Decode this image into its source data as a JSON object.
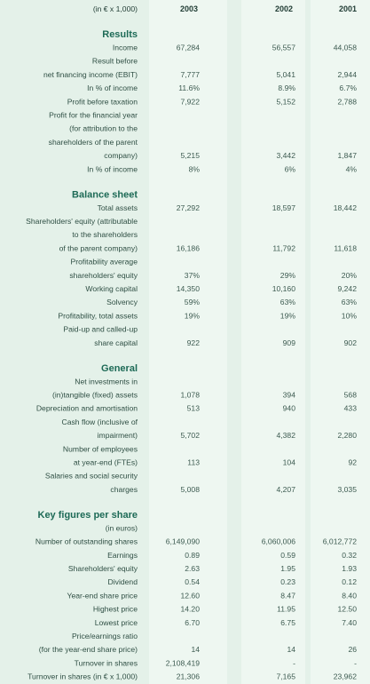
{
  "header": {
    "unit": "(in € x 1,000)",
    "years": [
      "2003",
      "2002",
      "2001"
    ]
  },
  "sections": [
    {
      "title": "Results",
      "rows": [
        {
          "label": "Income",
          "values": [
            "67,284",
            "56,557",
            "44,058"
          ]
        },
        {
          "label": "Result before"
        },
        {
          "label": "net financing income (EBIT)",
          "values": [
            "7,777",
            "5,041",
            "2,944"
          ]
        },
        {
          "label": "In % of income",
          "values": [
            "11.6%",
            "8.9%",
            "6.7%"
          ]
        },
        {
          "label": "Profit before taxation",
          "values": [
            "7,922",
            "5,152",
            "2,788"
          ]
        },
        {
          "label": "Profit for the financial year"
        },
        {
          "label": "(for attribution to the"
        },
        {
          "label": "shareholders of the parent"
        },
        {
          "label": "company)",
          "values": [
            "5,215",
            "3,442",
            "1,847"
          ]
        },
        {
          "label": "In % of income",
          "values": [
            "8%",
            "6%",
            "4%"
          ]
        }
      ]
    },
    {
      "title": "Balance sheet",
      "rows": [
        {
          "label": "Total assets",
          "values": [
            "27,292",
            "18,597",
            "18,442"
          ]
        },
        {
          "label": "Shareholders' equity (attributable"
        },
        {
          "label": "to the shareholders"
        },
        {
          "label": "of the parent company)",
          "values": [
            "16,186",
            "11,792",
            "11,618"
          ]
        },
        {
          "label": "Profitability average"
        },
        {
          "label": "shareholders' equity",
          "values": [
            "37%",
            "29%",
            "20%"
          ]
        },
        {
          "label": "Working capital",
          "values": [
            "14,350",
            "10,160",
            "9,242"
          ]
        },
        {
          "label": "Solvency",
          "values": [
            "59%",
            "63%",
            "63%"
          ]
        },
        {
          "label": "Profitability, total assets",
          "values": [
            "19%",
            "19%",
            "10%"
          ]
        },
        {
          "label": "Paid-up and called-up"
        },
        {
          "label": "share capital",
          "values": [
            "922",
            "909",
            "902"
          ]
        }
      ]
    },
    {
      "title": "General",
      "rows": [
        {
          "label": "Net investments in"
        },
        {
          "label": "(in)tangible (fixed) assets",
          "values": [
            "1,078",
            "394",
            "568"
          ]
        },
        {
          "label": "Depreciation and amortisation",
          "values": [
            "513",
            "940",
            "433"
          ]
        },
        {
          "label": "Cash flow (inclusive of"
        },
        {
          "label": "impairment)",
          "values": [
            "5,702",
            "4,382",
            "2,280"
          ]
        },
        {
          "label": "Number of employees"
        },
        {
          "label": "at year-end (FTEs)",
          "values": [
            "113",
            "104",
            "92"
          ]
        },
        {
          "label": "Salaries and social security"
        },
        {
          "label": "charges",
          "values": [
            "5,008",
            "4,207",
            "3,035"
          ]
        }
      ]
    },
    {
      "title": "Key figures per share",
      "rows": [
        {
          "label": "(in euros)"
        },
        {
          "label": "Number of outstanding shares",
          "values": [
            "6,149,090",
            "6,060,006",
            "6,012,772"
          ]
        },
        {
          "label": "Earnings",
          "values": [
            "0.89",
            "0.59",
            "0.32"
          ]
        },
        {
          "label": "Shareholders' equity",
          "values": [
            "2.63",
            "1.95",
            "1.93"
          ]
        },
        {
          "label": "Dividend",
          "values": [
            "0.54",
            "0.23",
            "0.12"
          ]
        },
        {
          "label": "Year-end share price",
          "values": [
            "12.60",
            "8.47",
            "8.40"
          ]
        },
        {
          "label": "Highest price",
          "values": [
            "14.20",
            "11.95",
            "12.50"
          ]
        },
        {
          "label": "Lowest price",
          "values": [
            "6.70",
            "6.75",
            "7.40"
          ]
        },
        {
          "label": "Price/earnings ratio"
        },
        {
          "label": "(for the year-end share price)",
          "values": [
            "14",
            "14",
            "26"
          ]
        },
        {
          "label": "Turnover in shares",
          "values": [
            "2,108,419",
            "-",
            "-"
          ]
        },
        {
          "label": "Turnover in shares (in € x 1,000)",
          "values": [
            "21,306",
            "7,165",
            "23,962"
          ]
        }
      ]
    }
  ]
}
